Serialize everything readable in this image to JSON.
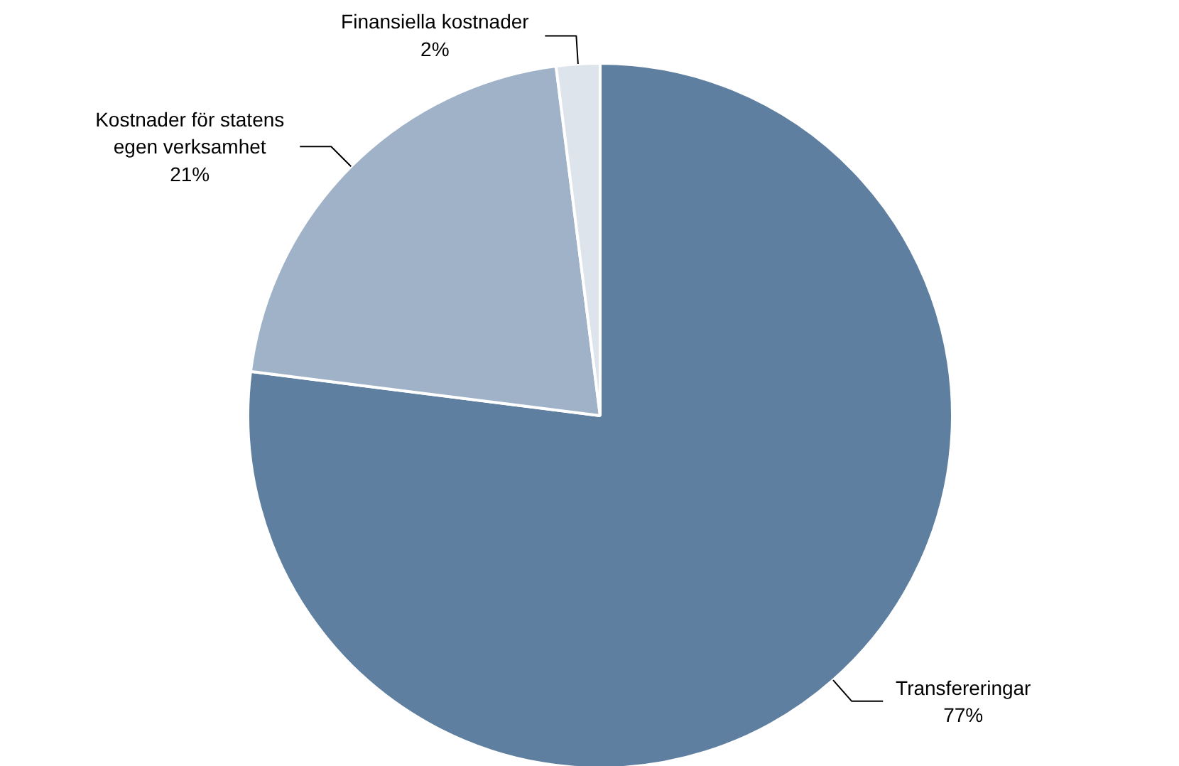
{
  "chart_data": {
    "type": "pie",
    "categories": [
      "Transfereringar",
      "Kostnader för statens egen verksamhet",
      "Finansiella kostnader"
    ],
    "values": [
      77,
      21,
      2
    ],
    "value_labels": [
      "77%",
      "21%",
      "2%"
    ],
    "colors": [
      "#5f7fa0",
      "#a0b2c8",
      "#dde4ec"
    ]
  }
}
